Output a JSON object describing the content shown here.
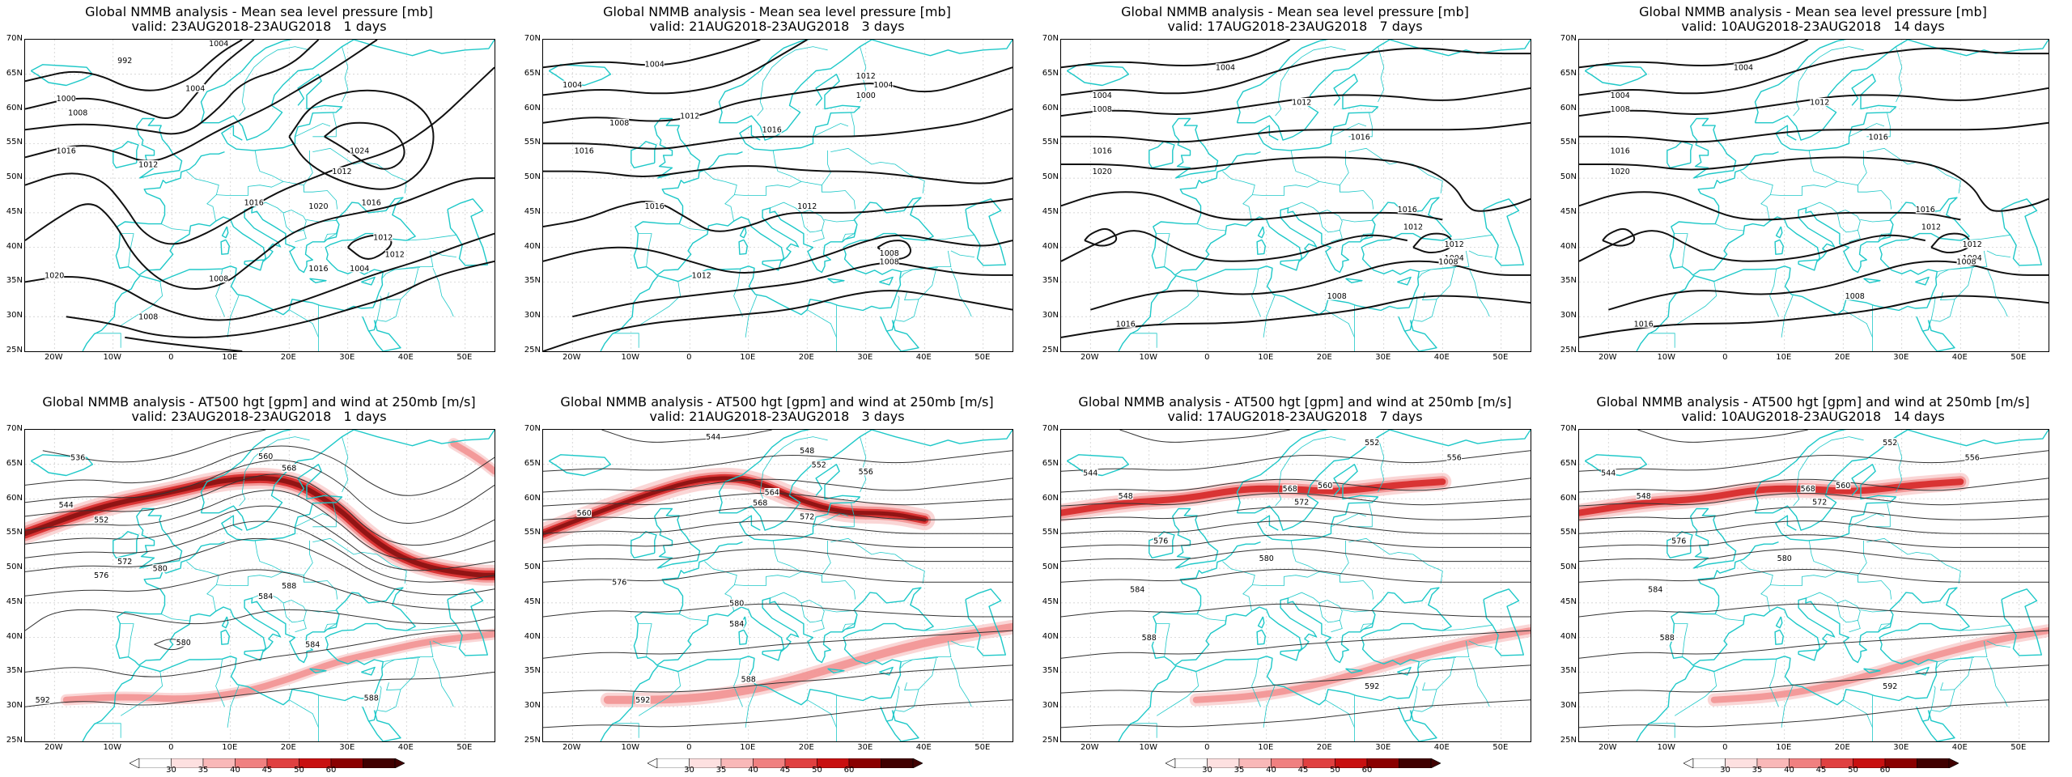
{
  "colors": {
    "coast": "#1ec8c8",
    "contour": "#111111",
    "jet_light": "#f8c8c8",
    "jet_mid": "#f08080",
    "jet_dark": "#d01010",
    "jet_darkest": "#600000"
  },
  "axes": {
    "lat_labels": [
      "70N",
      "65N",
      "60N",
      "55N",
      "50N",
      "45N",
      "40N",
      "35N",
      "30N",
      "25N"
    ],
    "lon_labels": [
      "20W",
      "10W",
      "0",
      "10E",
      "20E",
      "30E",
      "40E",
      "50E"
    ]
  },
  "colorbar": {
    "labels": [
      "30",
      "35",
      "40",
      "45",
      "50",
      "60"
    ]
  },
  "panels_top": [
    {
      "title": "Global NMMB analysis - Mean sea level pressure [mb]",
      "valid": "valid: 23AUG2018-23AUG2018   1 days"
    },
    {
      "title": "Global NMMB analysis - Mean sea level pressure [mb]",
      "valid": "valid: 21AUG2018-23AUG2018   3 days"
    },
    {
      "title": "Global NMMB analysis - Mean sea level pressure [mb]",
      "valid": "valid: 17AUG2018-23AUG2018   7 days"
    },
    {
      "title": "Global NMMB analysis - Mean sea level pressure [mb]",
      "valid": "valid: 10AUG2018-23AUG2018   14 days"
    }
  ],
  "panels_bottom": [
    {
      "title": "Global NMMB analysis - AT500 hgt [gpm] and wind at 250mb [m/s]",
      "valid": "valid: 23AUG2018-23AUG2018   1 days"
    },
    {
      "title": "Global NMMB analysis - AT500 hgt [gpm] and wind at 250mb [m/s]",
      "valid": "valid: 21AUG2018-23AUG2018   3 days"
    },
    {
      "title": "Global NMMB analysis - AT500 hgt [gpm] and wind at 250mb [m/s]",
      "valid": "valid: 17AUG2018-23AUG2018   7 days"
    },
    {
      "title": "Global NMMB analysis - AT500 hgt [gpm] and wind at 250mb [m/s]",
      "valid": "valid: 10AUG2018-23AUG2018   14 days"
    }
  ],
  "mslp_labels": [
    [
      "992",
      "1004",
      "1004",
      "1000",
      "1008",
      "1016",
      "1012",
      "1016",
      "1020",
      "1024",
      "1012",
      "1016",
      "1020",
      "1016",
      "1012",
      "1012",
      "1004",
      "1008",
      "1008"
    ],
    [
      "1004",
      "1004",
      "1008",
      "1012",
      "1016",
      "1016",
      "1016",
      "1012",
      "1012",
      "1008",
      "1008",
      "1000",
      "1004",
      "1012"
    ],
    [
      "1004",
      "1004",
      "1008",
      "1012",
      "1016",
      "1016",
      "1020",
      "1016",
      "1012",
      "1008",
      "1004",
      "1012",
      "1008",
      "1016"
    ],
    [
      "1004",
      "1004",
      "1008",
      "1012",
      "1016",
      "1016",
      "1020",
      "1016",
      "1012",
      "1008",
      "1004",
      "1012",
      "1008",
      "1016"
    ]
  ],
  "z500_labels": [
    [
      "536",
      "544",
      "552",
      "560",
      "568",
      "572",
      "576",
      "580",
      "584",
      "588",
      "592",
      "584",
      "580",
      "588"
    ],
    [
      "544",
      "548",
      "552",
      "556",
      "560",
      "564",
      "568",
      "572",
      "576",
      "580",
      "584",
      "588",
      "592"
    ],
    [
      "544",
      "548",
      "552",
      "556",
      "560",
      "568",
      "572",
      "576",
      "580",
      "584",
      "588",
      "592"
    ],
    [
      "544",
      "548",
      "552",
      "556",
      "560",
      "568",
      "572",
      "576",
      "580",
      "584",
      "588",
      "592"
    ]
  ]
}
